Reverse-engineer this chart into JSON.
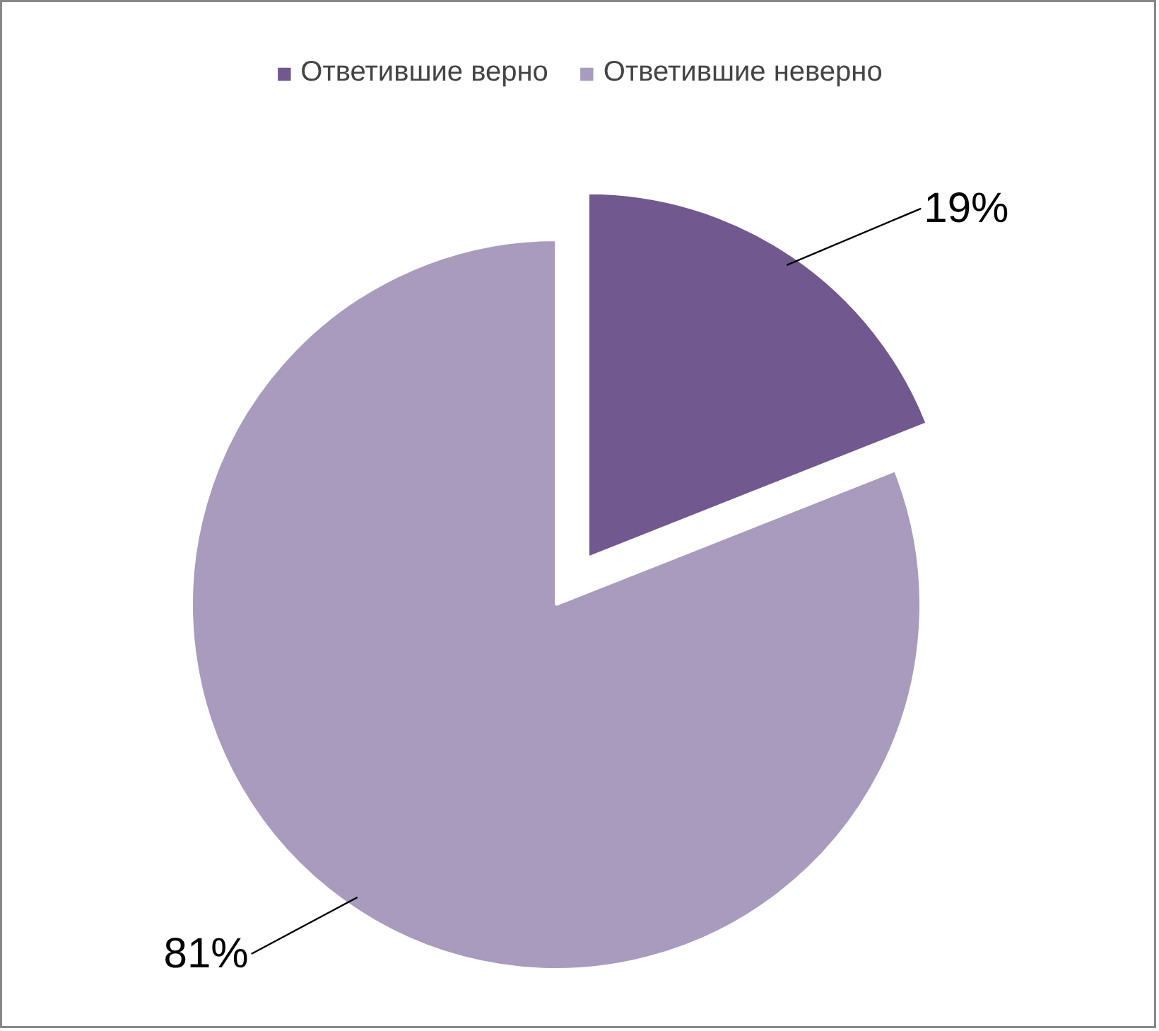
{
  "chart_data": {
    "type": "pie",
    "categories": [
      "Ответившие верно",
      "Ответившие неверно"
    ],
    "values": [
      19,
      81
    ],
    "colors": [
      "#71588f",
      "#a99bbd"
    ],
    "value_labels": [
      "19%",
      "81%"
    ],
    "legend": "top"
  }
}
